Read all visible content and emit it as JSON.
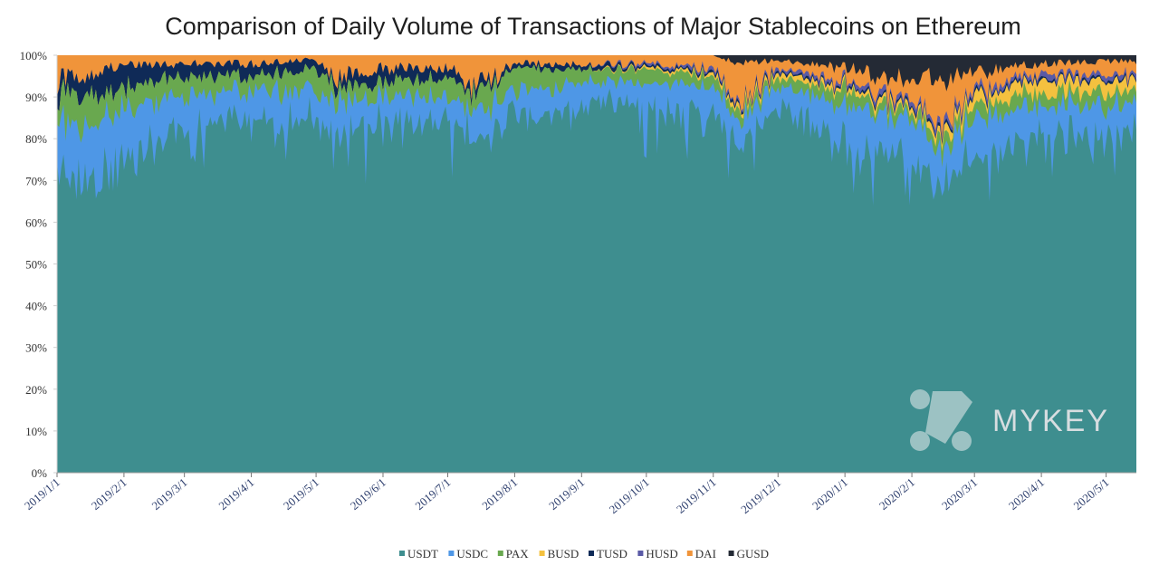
{
  "chart_data": {
    "type": "area",
    "stacked": true,
    "normalized": true,
    "title": "Comparison of Daily Volume of Transactions of Major Stablecoins on Ethereum",
    "xlabel": "",
    "ylabel": "",
    "ylim": [
      0,
      100
    ],
    "grid": false,
    "legend_position": "bottom",
    "x_range": [
      "2019-01-01",
      "2020-05-15"
    ],
    "x_ticks": [
      "2019/1/1",
      "2019/2/1",
      "2019/3/1",
      "2019/4/1",
      "2019/5/1",
      "2019/6/1",
      "2019/7/1",
      "2019/8/1",
      "2019/9/1",
      "2019/10/1",
      "2019/11/1",
      "2019/12/1",
      "2020/1/1",
      "2020/2/1",
      "2020/3/1",
      "2020/4/1",
      "2020/5/1"
    ],
    "y_ticks": [
      "0%",
      "10%",
      "20%",
      "30%",
      "40%",
      "50%",
      "60%",
      "70%",
      "80%",
      "90%",
      "100%"
    ],
    "series": [
      {
        "name": "USDT",
        "color": "#3e8e8f",
        "keyframes": [
          [
            "2019-01-01",
            72
          ],
          [
            "2019-01-15",
            68
          ],
          [
            "2019-02-01",
            70
          ],
          [
            "2019-02-15",
            80
          ],
          [
            "2019-03-01",
            84
          ],
          [
            "2019-04-01",
            86
          ],
          [
            "2019-05-01",
            84
          ],
          [
            "2019-06-01",
            82
          ],
          [
            "2019-07-01",
            84
          ],
          [
            "2019-07-15",
            78
          ],
          [
            "2019-08-01",
            84
          ],
          [
            "2019-09-01",
            88
          ],
          [
            "2019-10-01",
            88
          ],
          [
            "2019-11-01",
            88
          ],
          [
            "2019-11-15",
            80
          ],
          [
            "2019-12-01",
            86
          ],
          [
            "2020-01-01",
            78
          ],
          [
            "2020-01-15",
            74
          ],
          [
            "2020-02-01",
            72
          ],
          [
            "2020-02-15",
            66
          ],
          [
            "2020-03-01",
            74
          ],
          [
            "2020-04-01",
            80
          ],
          [
            "2020-05-01",
            80
          ],
          [
            "2020-05-15",
            78
          ]
        ]
      },
      {
        "name": "USDC",
        "color": "#4e97e6",
        "keyframes": [
          [
            "2019-01-01",
            11
          ],
          [
            "2019-02-01",
            12
          ],
          [
            "2019-03-01",
            7
          ],
          [
            "2019-04-01",
            6
          ],
          [
            "2019-05-01",
            6
          ],
          [
            "2019-06-01",
            7
          ],
          [
            "2019-07-01",
            5
          ],
          [
            "2019-08-01",
            6
          ],
          [
            "2019-09-01",
            5
          ],
          [
            "2019-10-01",
            5
          ],
          [
            "2019-11-01",
            5
          ],
          [
            "2019-12-01",
            5
          ],
          [
            "2020-01-01",
            8
          ],
          [
            "2020-02-01",
            8
          ],
          [
            "2020-03-01",
            7
          ],
          [
            "2020-04-01",
            7
          ],
          [
            "2020-05-01",
            7
          ],
          [
            "2020-05-15",
            7
          ]
        ]
      },
      {
        "name": "PAX",
        "color": "#69a84f",
        "keyframes": [
          [
            "2019-01-01",
            7
          ],
          [
            "2019-02-01",
            5
          ],
          [
            "2019-03-01",
            4
          ],
          [
            "2019-04-01",
            3
          ],
          [
            "2019-05-01",
            5
          ],
          [
            "2019-06-01",
            3
          ],
          [
            "2019-07-01",
            4
          ],
          [
            "2019-08-01",
            5
          ],
          [
            "2019-09-01",
            3
          ],
          [
            "2019-10-01",
            3
          ],
          [
            "2019-11-01",
            2
          ],
          [
            "2019-12-01",
            2
          ],
          [
            "2020-01-01",
            3
          ],
          [
            "2020-02-01",
            2
          ],
          [
            "2020-03-01",
            3
          ],
          [
            "2020-04-01",
            3
          ],
          [
            "2020-05-01",
            3
          ],
          [
            "2020-05-15",
            3
          ]
        ]
      },
      {
        "name": "BUSD",
        "color": "#f4c13f",
        "keyframes": [
          [
            "2019-01-01",
            0
          ],
          [
            "2019-09-01",
            0
          ],
          [
            "2019-10-01",
            0.5
          ],
          [
            "2019-12-01",
            1
          ],
          [
            "2020-01-01",
            1
          ],
          [
            "2020-02-01",
            1
          ],
          [
            "2020-03-01",
            2
          ],
          [
            "2020-04-01",
            3
          ],
          [
            "2020-05-01",
            3
          ],
          [
            "2020-05-15",
            3
          ]
        ]
      },
      {
        "name": "TUSD",
        "color": "#0f2a57",
        "keyframes": [
          [
            "2019-01-01",
            4
          ],
          [
            "2019-02-01",
            5
          ],
          [
            "2019-03-01",
            3
          ],
          [
            "2019-04-01",
            3
          ],
          [
            "2019-05-01",
            2
          ],
          [
            "2019-06-01",
            3
          ],
          [
            "2019-07-01",
            2
          ],
          [
            "2019-08-01",
            1
          ],
          [
            "2019-09-01",
            1
          ],
          [
            "2019-10-01",
            0.5
          ],
          [
            "2019-11-01",
            0.5
          ],
          [
            "2019-12-01",
            0.5
          ],
          [
            "2020-01-01",
            0.5
          ],
          [
            "2020-05-15",
            0.5
          ]
        ]
      },
      {
        "name": "HUSD",
        "color": "#5a5aa6",
        "keyframes": [
          [
            "2019-01-01",
            0
          ],
          [
            "2019-09-01",
            0
          ],
          [
            "2019-10-01",
            0.5
          ],
          [
            "2019-12-01",
            0.7
          ],
          [
            "2020-01-01",
            1
          ],
          [
            "2020-03-01",
            1
          ],
          [
            "2020-04-01",
            1
          ],
          [
            "2020-05-15",
            1
          ]
        ]
      },
      {
        "name": "DAI",
        "color": "#f0943a",
        "keyframes": [
          [
            "2019-01-01",
            6
          ],
          [
            "2019-02-01",
            2
          ],
          [
            "2019-03-01",
            2
          ],
          [
            "2019-04-01",
            2
          ],
          [
            "2019-05-01",
            1
          ],
          [
            "2019-05-10",
            6
          ],
          [
            "2019-06-01",
            3
          ],
          [
            "2019-07-01",
            3
          ],
          [
            "2019-07-15",
            8
          ],
          [
            "2019-08-01",
            2
          ],
          [
            "2019-09-01",
            2
          ],
          [
            "2019-10-01",
            2
          ],
          [
            "2019-11-01",
            3
          ],
          [
            "2019-11-15",
            9
          ],
          [
            "2019-12-01",
            2
          ],
          [
            "2020-01-01",
            3
          ],
          [
            "2020-02-01",
            4
          ],
          [
            "2020-02-15",
            9
          ],
          [
            "2020-03-01",
            4
          ],
          [
            "2020-04-01",
            2
          ],
          [
            "2020-05-01",
            3
          ],
          [
            "2020-05-15",
            3
          ]
        ]
      },
      {
        "name": "GUSD",
        "color": "#242a35",
        "keyframes": [
          [
            "2019-01-01",
            0
          ],
          [
            "2019-11-01",
            0
          ],
          [
            "2019-11-12",
            2
          ],
          [
            "2019-12-01",
            1
          ],
          [
            "2020-01-01",
            3
          ],
          [
            "2020-02-01",
            6
          ],
          [
            "2020-03-01",
            4
          ],
          [
            "2020-04-01",
            2
          ],
          [
            "2020-05-01",
            1.5
          ],
          [
            "2020-05-15",
            1.5
          ]
        ]
      }
    ]
  },
  "watermark": {
    "text": "MYKEY"
  }
}
